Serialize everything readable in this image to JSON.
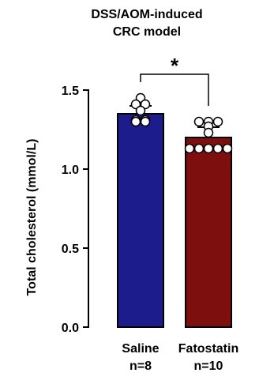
{
  "chart_data": {
    "type": "bar",
    "title": [
      "DSS/AOM-induced",
      "CRC model"
    ],
    "ylabel": "Total cholesterol (mmol/L)",
    "xlabel": "",
    "ylim": [
      0,
      1.5
    ],
    "yticks": [
      0.0,
      0.5,
      1.0,
      1.5
    ],
    "ytick_labels": [
      "0.0",
      "0.5",
      "1.0",
      "1.5"
    ],
    "categories": [
      {
        "name": "Saline",
        "n_label": "n=8"
      },
      {
        "name": "Fatostatin",
        "n_label": "n=10"
      }
    ],
    "values": [
      1.35,
      1.2
    ],
    "error": [
      0.05,
      0.065
    ],
    "bar_colors": [
      "#1c1c8c",
      "#7d0f0f"
    ],
    "points": [
      [
        1.45,
        1.41,
        1.41,
        1.37,
        1.31,
        1.31,
        1.3,
        1.3
      ],
      [
        1.3,
        1.3,
        1.3,
        1.27,
        1.23,
        1.13,
        1.13,
        1.13,
        1.13,
        1.13
      ]
    ],
    "significance": {
      "pair": [
        0,
        1
      ],
      "label": "*"
    }
  }
}
